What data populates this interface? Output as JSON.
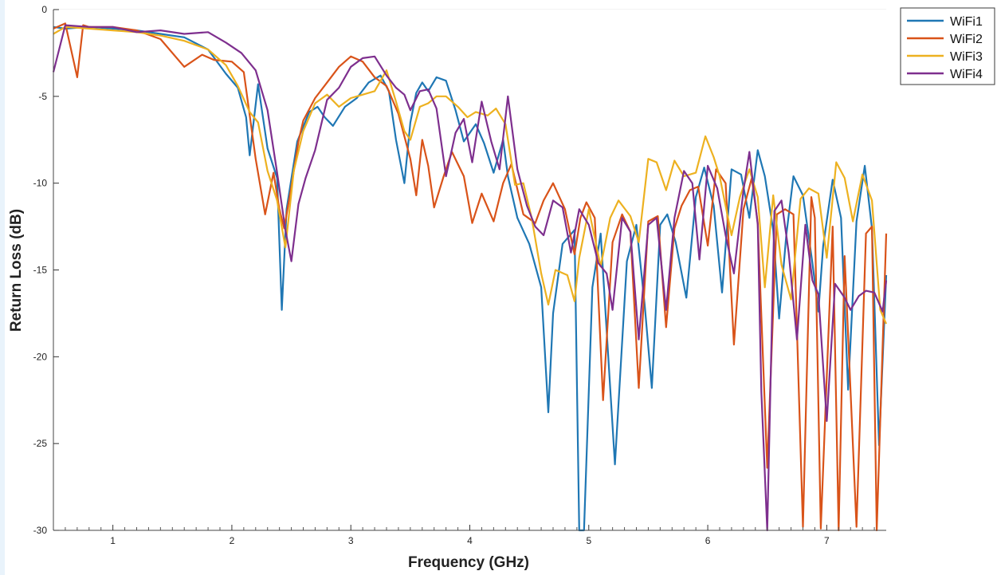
{
  "chart_data": {
    "type": "line",
    "xlabel": "Frequency (GHz)",
    "ylabel": "Return Loss (dB)",
    "xlim": [
      0.5,
      7.5
    ],
    "ylim": [
      -30,
      0
    ],
    "xticks": [
      1,
      2,
      3,
      4,
      5,
      6,
      7
    ],
    "yticks": [
      0,
      -5,
      -10,
      -15,
      -20,
      -25,
      -30
    ],
    "grid": true,
    "legend_position": "top-right",
    "series": [
      {
        "name": "WiFi1",
        "color": "#1f77b4",
        "x": [
          0.5,
          0.6,
          0.8,
          1.0,
          1.2,
          1.4,
          1.6,
          1.8,
          1.95,
          2.05,
          2.12,
          2.15,
          2.22,
          2.3,
          2.38,
          2.42,
          2.46,
          2.55,
          2.65,
          2.72,
          2.78,
          2.85,
          2.95,
          3.05,
          3.15,
          3.25,
          3.32,
          3.38,
          3.45,
          3.5,
          3.55,
          3.6,
          3.65,
          3.72,
          3.8,
          3.88,
          3.95,
          4.05,
          4.12,
          4.2,
          4.28,
          4.32,
          4.4,
          4.5,
          4.6,
          4.66,
          4.7,
          4.78,
          4.88,
          4.92,
          4.96,
          5.03,
          5.1,
          5.15,
          5.22,
          5.32,
          5.4,
          5.47,
          5.53,
          5.6,
          5.66,
          5.73,
          5.82,
          5.9,
          5.97,
          6.05,
          6.12,
          6.2,
          6.28,
          6.35,
          6.42,
          6.48,
          6.55,
          6.6,
          6.66,
          6.72,
          6.8,
          6.88,
          6.93,
          6.97,
          7.05,
          7.12,
          7.18,
          7.25,
          7.32,
          7.38,
          7.44,
          7.5
        ],
        "y": [
          -1.0,
          -1.1,
          -1.0,
          -1.1,
          -1.2,
          -1.4,
          -1.6,
          -2.3,
          -3.7,
          -4.5,
          -6.2,
          -8.4,
          -4.3,
          -8.0,
          -9.7,
          -17.3,
          -11.5,
          -7.6,
          -5.9,
          -5.6,
          -6.2,
          -6.7,
          -5.6,
          -5.1,
          -4.2,
          -3.8,
          -4.7,
          -7.5,
          -10.0,
          -6.5,
          -4.8,
          -4.2,
          -4.7,
          -3.9,
          -4.1,
          -5.8,
          -7.6,
          -6.6,
          -7.7,
          -9.4,
          -7.5,
          -9.6,
          -12.0,
          -13.5,
          -16.0,
          -23.2,
          -17.5,
          -13.5,
          -12.7,
          -30.0,
          -30.0,
          -16.0,
          -12.9,
          -18.5,
          -26.2,
          -14.5,
          -12.4,
          -17.0,
          -21.8,
          -12.4,
          -11.8,
          -13.4,
          -16.6,
          -10.8,
          -9.1,
          -11.3,
          -16.3,
          -9.2,
          -9.5,
          -12.0,
          -8.1,
          -9.6,
          -12.7,
          -17.8,
          -13.0,
          -9.6,
          -10.7,
          -14.6,
          -17.4,
          -13.6,
          -9.8,
          -12.0,
          -21.9,
          -12.2,
          -9.0,
          -12.6,
          -25.1,
          -15.3
        ]
      },
      {
        "name": "WiFi2",
        "color": "#d95319",
        "x": [
          0.5,
          0.6,
          0.7,
          0.75,
          0.8,
          0.9,
          1.0,
          1.2,
          1.4,
          1.6,
          1.75,
          1.85,
          2.0,
          2.1,
          2.2,
          2.28,
          2.35,
          2.4,
          2.44,
          2.5,
          2.56,
          2.6,
          2.7,
          2.8,
          2.9,
          3.0,
          3.1,
          3.2,
          3.3,
          3.4,
          3.5,
          3.55,
          3.6,
          3.65,
          3.7,
          3.78,
          3.85,
          3.95,
          4.02,
          4.1,
          4.2,
          4.28,
          4.35,
          4.45,
          4.55,
          4.62,
          4.7,
          4.8,
          4.88,
          4.93,
          4.98,
          5.05,
          5.12,
          5.2,
          5.28,
          5.35,
          5.42,
          5.5,
          5.58,
          5.65,
          5.72,
          5.78,
          5.85,
          5.92,
          6.0,
          6.07,
          6.15,
          6.22,
          6.3,
          6.37,
          6.42,
          6.5,
          6.58,
          6.65,
          6.72,
          6.8,
          6.87,
          6.9,
          6.95,
          7.05,
          7.1,
          7.15,
          7.25,
          7.33,
          7.38,
          7.42,
          7.5
        ],
        "y": [
          -1.1,
          -0.8,
          -3.9,
          -0.9,
          -1.0,
          -1.0,
          -1.0,
          -1.2,
          -1.7,
          -3.3,
          -2.6,
          -2.9,
          -3.0,
          -3.6,
          -8.6,
          -11.8,
          -9.4,
          -11.5,
          -12.6,
          -10.2,
          -7.6,
          -6.4,
          -5.1,
          -4.2,
          -3.3,
          -2.7,
          -3.0,
          -3.9,
          -4.4,
          -6.0,
          -8.6,
          -10.7,
          -7.5,
          -9.0,
          -11.4,
          -9.6,
          -8.2,
          -9.6,
          -12.3,
          -10.6,
          -12.2,
          -10.0,
          -8.9,
          -11.8,
          -12.3,
          -11.0,
          -10.0,
          -11.5,
          -14.1,
          -12.0,
          -11.1,
          -12.0,
          -22.5,
          -13.4,
          -11.8,
          -12.8,
          -21.8,
          -12.2,
          -11.9,
          -18.3,
          -12.6,
          -11.3,
          -10.4,
          -10.2,
          -13.6,
          -9.2,
          -10.0,
          -19.3,
          -11.5,
          -9.7,
          -12.3,
          -26.4,
          -11.8,
          -11.5,
          -11.8,
          -29.8,
          -10.8,
          -12.0,
          -29.9,
          -12.5,
          -30.0,
          -14.2,
          -29.8,
          -12.9,
          -12.5,
          -30.0,
          -12.9
        ]
      },
      {
        "name": "WiFi3",
        "color": "#edb120",
        "x": [
          0.5,
          0.6,
          0.8,
          1.0,
          1.2,
          1.4,
          1.6,
          1.8,
          1.95,
          2.05,
          2.15,
          2.22,
          2.3,
          2.38,
          2.45,
          2.52,
          2.6,
          2.7,
          2.8,
          2.9,
          3.0,
          3.1,
          3.2,
          3.3,
          3.38,
          3.45,
          3.5,
          3.58,
          3.65,
          3.72,
          3.8,
          3.9,
          3.98,
          4.05,
          4.15,
          4.22,
          4.3,
          4.38,
          4.45,
          4.52,
          4.6,
          4.66,
          4.72,
          4.82,
          4.88,
          4.92,
          5.0,
          5.1,
          5.18,
          5.25,
          5.35,
          5.42,
          5.5,
          5.57,
          5.65,
          5.72,
          5.8,
          5.9,
          5.98,
          6.05,
          6.1,
          6.2,
          6.27,
          6.35,
          6.42,
          6.48,
          6.55,
          6.62,
          6.7,
          6.78,
          6.85,
          6.93,
          7.0,
          7.08,
          7.15,
          7.22,
          7.3,
          7.38,
          7.45,
          7.5
        ],
        "y": [
          -1.4,
          -1.0,
          -1.1,
          -1.2,
          -1.3,
          -1.5,
          -1.8,
          -2.3,
          -3.2,
          -4.4,
          -5.9,
          -6.5,
          -9.3,
          -11.0,
          -13.7,
          -9.3,
          -7.0,
          -5.4,
          -4.9,
          -5.6,
          -5.1,
          -4.9,
          -4.7,
          -3.5,
          -5.3,
          -7.0,
          -7.5,
          -5.6,
          -5.4,
          -5.0,
          -5.0,
          -5.6,
          -6.2,
          -5.9,
          -6.1,
          -5.7,
          -6.6,
          -10.1,
          -10.0,
          -12.0,
          -15.2,
          -17.0,
          -15.0,
          -15.3,
          -16.8,
          -14.3,
          -11.5,
          -14.8,
          -12.0,
          -11.0,
          -11.9,
          -13.4,
          -8.6,
          -8.8,
          -10.4,
          -8.7,
          -9.6,
          -9.4,
          -7.3,
          -8.5,
          -9.6,
          -13.0,
          -10.8,
          -9.2,
          -10.8,
          -16.0,
          -10.7,
          -14.7,
          -16.7,
          -10.9,
          -10.3,
          -10.6,
          -14.3,
          -8.8,
          -9.7,
          -12.2,
          -9.5,
          -11.0,
          -17.3,
          -18.1
        ]
      },
      {
        "name": "WiFi4",
        "color": "#7e2f8e",
        "x": [
          0.5,
          0.6,
          0.8,
          1.0,
          1.2,
          1.4,
          1.6,
          1.8,
          1.95,
          2.08,
          2.2,
          2.3,
          2.38,
          2.45,
          2.5,
          2.56,
          2.62,
          2.7,
          2.8,
          2.9,
          3.0,
          3.1,
          3.2,
          3.3,
          3.38,
          3.45,
          3.5,
          3.58,
          3.65,
          3.72,
          3.8,
          3.88,
          3.95,
          4.02,
          4.1,
          4.18,
          4.25,
          4.32,
          4.4,
          4.48,
          4.55,
          4.62,
          4.7,
          4.78,
          4.85,
          4.92,
          5.0,
          5.08,
          5.15,
          5.2,
          5.28,
          5.35,
          5.42,
          5.5,
          5.57,
          5.65,
          5.72,
          5.8,
          5.87,
          5.93,
          6.0,
          6.08,
          6.15,
          6.22,
          6.3,
          6.35,
          6.42,
          6.45,
          6.5,
          6.56,
          6.62,
          6.68,
          6.75,
          6.82,
          6.88,
          6.93,
          7.0,
          7.07,
          7.15,
          7.2,
          7.27,
          7.33,
          7.4,
          7.47,
          7.5
        ],
        "y": [
          -3.6,
          -0.9,
          -1.0,
          -1.0,
          -1.3,
          -1.2,
          -1.4,
          -1.3,
          -1.9,
          -2.5,
          -3.5,
          -5.8,
          -9.4,
          -12.7,
          -14.5,
          -11.2,
          -9.7,
          -8.1,
          -5.2,
          -4.5,
          -3.3,
          -2.8,
          -2.7,
          -3.8,
          -4.5,
          -4.9,
          -5.8,
          -4.7,
          -4.6,
          -5.7,
          -9.6,
          -7.1,
          -6.3,
          -8.8,
          -5.3,
          -7.6,
          -9.2,
          -5.0,
          -9.2,
          -11.3,
          -12.5,
          -13.0,
          -11.0,
          -11.4,
          -14.0,
          -11.5,
          -12.4,
          -14.6,
          -15.2,
          -17.3,
          -12.0,
          -12.8,
          -19.0,
          -12.4,
          -12.0,
          -17.3,
          -12.0,
          -9.3,
          -10.0,
          -14.4,
          -9.0,
          -10.3,
          -13.0,
          -15.2,
          -10.4,
          -8.2,
          -12.4,
          -22.0,
          -30.0,
          -11.6,
          -11.0,
          -14.0,
          -19.0,
          -12.4,
          -15.6,
          -16.4,
          -23.7,
          -15.8,
          -16.6,
          -17.3,
          -16.5,
          -16.2,
          -16.3,
          -17.4,
          -15.6
        ]
      }
    ]
  }
}
